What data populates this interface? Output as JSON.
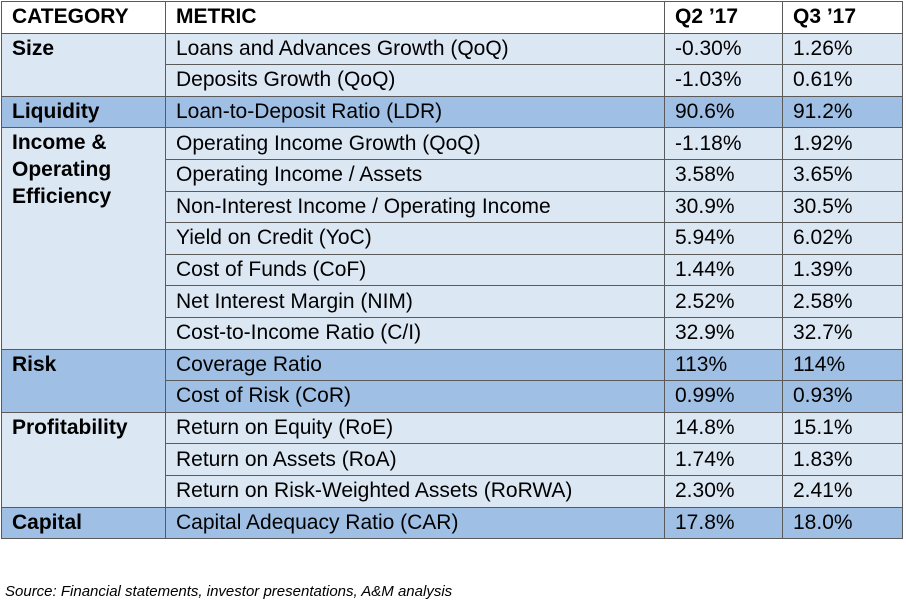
{
  "table": {
    "headers": [
      "CATEGORY",
      "METRIC",
      "Q2 ’17",
      "Q3 ’17"
    ],
    "groups": [
      {
        "category": "Size",
        "shade": "light",
        "rows": [
          {
            "metric": "Loans and Advances Growth (QoQ)",
            "q2": "-0.30%",
            "q3": "1.26%"
          },
          {
            "metric": "Deposits Growth (QoQ)",
            "q2": "-1.03%",
            "q3": "0.61%"
          }
        ]
      },
      {
        "category": "Liquidity",
        "shade": "dark",
        "rows": [
          {
            "metric": "Loan-to-Deposit Ratio (LDR)",
            "q2": "90.6%",
            "q3": "91.2%"
          }
        ]
      },
      {
        "category": "Income & Operating Efficiency",
        "shade": "light",
        "rows": [
          {
            "metric": "Operating Income Growth (QoQ)",
            "q2": "-1.18%",
            "q3": "1.92%"
          },
          {
            "metric": "Operating Income / Assets",
            "q2": "3.58%",
            "q3": "3.65%"
          },
          {
            "metric": "Non-Interest Income / Operating Income",
            "q2": "30.9%",
            "q3": "30.5%"
          },
          {
            "metric": "Yield on Credit (YoC)",
            "q2": "5.94%",
            "q3": "6.02%"
          },
          {
            "metric": "Cost of Funds (CoF)",
            "q2": "1.44%",
            "q3": "1.39%"
          },
          {
            "metric": "Net Interest Margin (NIM)",
            "q2": "2.52%",
            "q3": "2.58%"
          },
          {
            "metric": "Cost-to-Income Ratio (C/I)",
            "q2": "32.9%",
            "q3": "32.7%"
          }
        ]
      },
      {
        "category": "Risk",
        "shade": "dark",
        "rows": [
          {
            "metric": "Coverage Ratio",
            "q2": "113%",
            "q3": "114%"
          },
          {
            "metric": "Cost of Risk (CoR)",
            "q2": "0.99%",
            "q3": "0.93%"
          }
        ]
      },
      {
        "category": "Profitability",
        "shade": "light",
        "rows": [
          {
            "metric": "Return on Equity (RoE)",
            "q2": "14.8%",
            "q3": "15.1%"
          },
          {
            "metric": "Return on Assets (RoA)",
            "q2": "1.74%",
            "q3": "1.83%"
          },
          {
            "metric": "Return on Risk-Weighted Assets (RoRWA)",
            "q2": "2.30%",
            "q3": "2.41%"
          }
        ]
      },
      {
        "category": "Capital",
        "shade": "dark",
        "rows": [
          {
            "metric": "Capital Adequacy Ratio (CAR)",
            "q2": "17.8%",
            "q3": "18.0%"
          }
        ]
      }
    ]
  },
  "source": "Source: Financial statements, investor presentations, A&M analysis",
  "colors": {
    "light_row": "#dce7f4",
    "dark_row": "#9fc0e4",
    "border": "#5a5a5a"
  }
}
